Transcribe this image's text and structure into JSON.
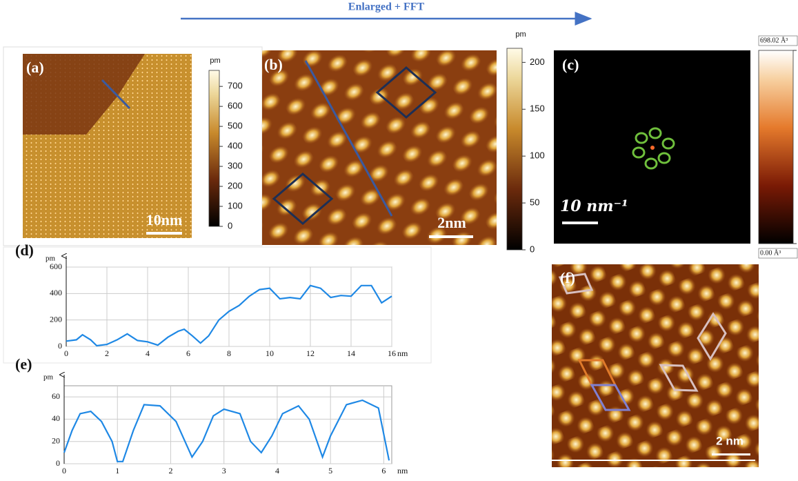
{
  "header": {
    "arrow_label": "Enlarged + FFT"
  },
  "panels": {
    "a": {
      "label": "(a)",
      "scalebar": "10nm"
    },
    "b": {
      "label": "(b)",
      "scalebar": "2nm"
    },
    "c": {
      "label": "(c)",
      "scalebar": "10 nm⁻¹"
    },
    "f": {
      "label": "(f)",
      "scalebar": "2 nm"
    }
  },
  "chart_data": [
    {
      "type": "colorbar",
      "y_label": "pm",
      "ylim": [
        0,
        780
      ],
      "yticks": [
        0,
        100,
        200,
        300,
        400,
        500,
        600,
        700
      ]
    },
    {
      "type": "colorbar",
      "y_label": "pm",
      "ylim": [
        0,
        215
      ],
      "yticks": [
        0,
        50,
        100,
        150,
        200
      ]
    },
    {
      "type": "colorbar",
      "ylim": [
        0,
        698.02
      ],
      "yticks": [
        {
          "value": 0,
          "label": "0.00 Å³"
        },
        {
          "value": 698.02,
          "label": "698.02 Å³"
        }
      ]
    },
    {
      "type": "line",
      "title": "(d)",
      "y_label": "pm",
      "x_label": "nm",
      "color": "#1e88e5",
      "x": [
        0,
        0.5,
        0.8,
        1.2,
        1.5,
        2,
        2.5,
        3,
        3.5,
        4,
        4.5,
        5,
        5.5,
        5.8,
        6.2,
        6.6,
        7,
        7.5,
        8,
        8.5,
        9,
        9.5,
        10,
        10.5,
        11,
        11.5,
        12,
        12.5,
        13,
        13.5,
        14,
        14.5,
        15,
        15.5,
        16
      ],
      "values": [
        40,
        50,
        88,
        50,
        5,
        15,
        50,
        95,
        45,
        35,
        10,
        70,
        115,
        130,
        80,
        25,
        80,
        200,
        265,
        310,
        380,
        430,
        440,
        360,
        370,
        360,
        460,
        440,
        370,
        385,
        380,
        460,
        460,
        330,
        380
      ],
      "xlim": [
        0,
        16
      ],
      "xticks": [
        0,
        2,
        4,
        6,
        8,
        10,
        12,
        14,
        16
      ],
      "ylim": [
        0,
        600
      ],
      "yticks": [
        0,
        200,
        400,
        600
      ],
      "grid": true
    },
    {
      "type": "line",
      "title": "(e)",
      "y_label": "pm",
      "x_label": "nm",
      "color": "#1e88e5",
      "x": [
        0,
        0.15,
        0.3,
        0.5,
        0.7,
        0.9,
        1,
        1.1,
        1.3,
        1.5,
        1.8,
        2.1,
        2.4,
        2.6,
        2.8,
        3,
        3.3,
        3.5,
        3.7,
        3.9,
        4.1,
        4.4,
        4.6,
        4.85,
        5,
        5.3,
        5.6,
        5.9,
        6.1
      ],
      "values": [
        10,
        30,
        45,
        47,
        38,
        20,
        2,
        2,
        30,
        53,
        52,
        38,
        6,
        20,
        43,
        49,
        45,
        20,
        10,
        25,
        45,
        52,
        40,
        6,
        25,
        53,
        57,
        50,
        3
      ],
      "xlim": [
        0,
        6.15
      ],
      "xticks": [
        0,
        1,
        2,
        3,
        4,
        5,
        6
      ],
      "ylim": [
        0,
        70
      ],
      "yticks": [
        0,
        20,
        40,
        60
      ],
      "grid": true
    }
  ]
}
